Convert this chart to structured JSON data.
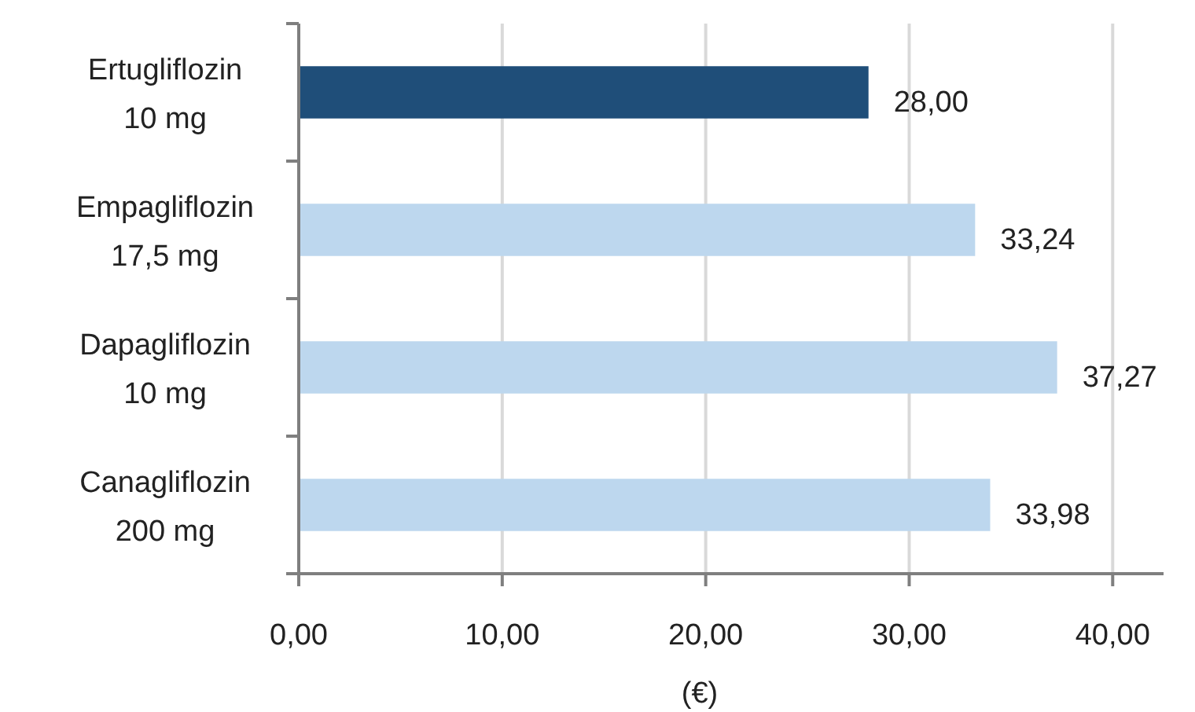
{
  "chart_data": {
    "type": "bar",
    "orientation": "horizontal",
    "categories": [
      "Ertugliflozin 10 mg",
      "Empagliflozin 17,5 mg",
      "Dapagliflozin 10 mg",
      "Canagliflozin 200 mg"
    ],
    "values": [
      28.0,
      33.24,
      37.27,
      33.98
    ],
    "colors": [
      "#1f4e79",
      "#bdd7ee",
      "#bdd7ee",
      "#bdd7ee"
    ],
    "value_labels": [
      "28,00",
      "33,24",
      "37,27",
      "33,98"
    ],
    "xlabel": "(€)",
    "xlim": [
      0,
      42.5
    ],
    "xticks": [
      {
        "value": 0,
        "label": "0,00"
      },
      {
        "value": 10,
        "label": "10,00"
      },
      {
        "value": 20,
        "label": "20,00"
      },
      {
        "value": 30,
        "label": "30,00"
      },
      {
        "value": 40,
        "label": "40,00"
      }
    ],
    "grid": "x"
  }
}
